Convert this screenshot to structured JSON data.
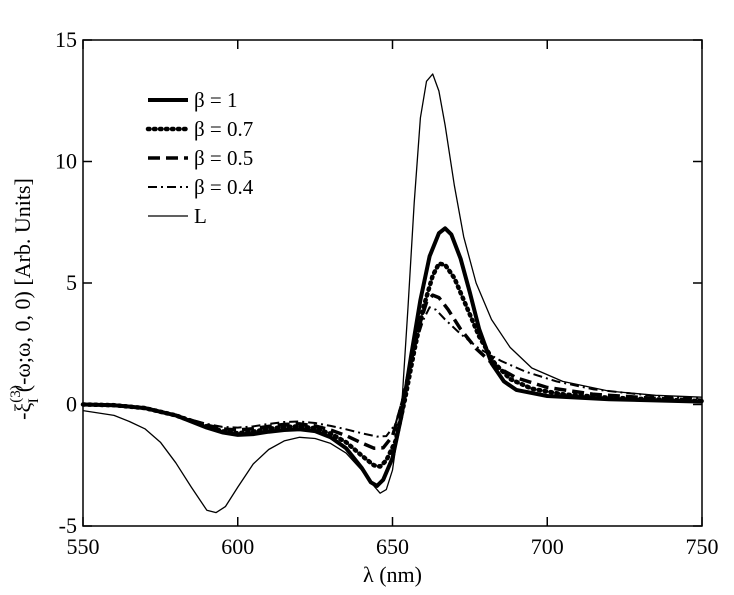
{
  "chart_data": {
    "type": "line",
    "xlabel": "λ (nm)",
    "ylabel": "-ξ_I^(3)(-ω;ω, 0, 0) [Arb. Units]",
    "xlim": [
      550,
      750
    ],
    "ylim": [
      -5,
      15
    ],
    "xticks": [
      550,
      600,
      650,
      700,
      750
    ],
    "yticks": [
      -5,
      0,
      5,
      10,
      15
    ],
    "grid": false,
    "legend_position": "top-left",
    "series": [
      {
        "name": "β = 1",
        "style": "solid-thick",
        "points": [
          [
            550,
            0
          ],
          [
            560,
            -0.03
          ],
          [
            570,
            -0.15
          ],
          [
            580,
            -0.45
          ],
          [
            590,
            -0.95
          ],
          [
            595,
            -1.15
          ],
          [
            600,
            -1.25
          ],
          [
            605,
            -1.22
          ],
          [
            610,
            -1.12
          ],
          [
            615,
            -1.05
          ],
          [
            620,
            -1.02
          ],
          [
            625,
            -1.1
          ],
          [
            630,
            -1.35
          ],
          [
            635,
            -1.8
          ],
          [
            640,
            -2.6
          ],
          [
            643,
            -3.2
          ],
          [
            645,
            -3.35
          ],
          [
            647,
            -3.1
          ],
          [
            650,
            -2.2
          ],
          [
            653,
            -0.4
          ],
          [
            656,
            2.0
          ],
          [
            659,
            4.3
          ],
          [
            662,
            6.1
          ],
          [
            665,
            7.05
          ],
          [
            667,
            7.25
          ],
          [
            669,
            7.0
          ],
          [
            672,
            6.0
          ],
          [
            675,
            4.6
          ],
          [
            678,
            3.1
          ],
          [
            682,
            1.7
          ],
          [
            686,
            0.95
          ],
          [
            690,
            0.6
          ],
          [
            700,
            0.35
          ],
          [
            720,
            0.22
          ],
          [
            750,
            0.12
          ]
        ]
      },
      {
        "name": "β = 0.7",
        "style": "dotted-thick",
        "points": [
          [
            550,
            0
          ],
          [
            560,
            -0.03
          ],
          [
            570,
            -0.15
          ],
          [
            580,
            -0.45
          ],
          [
            590,
            -0.9
          ],
          [
            595,
            -1.1
          ],
          [
            600,
            -1.18
          ],
          [
            605,
            -1.12
          ],
          [
            610,
            -1.0
          ],
          [
            615,
            -0.92
          ],
          [
            620,
            -0.9
          ],
          [
            625,
            -0.98
          ],
          [
            630,
            -1.2
          ],
          [
            635,
            -1.55
          ],
          [
            640,
            -2.1
          ],
          [
            644,
            -2.5
          ],
          [
            646,
            -2.55
          ],
          [
            648,
            -2.3
          ],
          [
            651,
            -1.5
          ],
          [
            654,
            0.2
          ],
          [
            657,
            2.2
          ],
          [
            660,
            4.0
          ],
          [
            663,
            5.3
          ],
          [
            665,
            5.8
          ],
          [
            667,
            5.75
          ],
          [
            670,
            5.2
          ],
          [
            674,
            4.0
          ],
          [
            678,
            2.8
          ],
          [
            683,
            1.7
          ],
          [
            688,
            1.05
          ],
          [
            695,
            0.65
          ],
          [
            705,
            0.42
          ],
          [
            720,
            0.28
          ],
          [
            750,
            0.14
          ]
        ]
      },
      {
        "name": "β = 0.5",
        "style": "dashed-thick",
        "points": [
          [
            550,
            0
          ],
          [
            560,
            -0.03
          ],
          [
            570,
            -0.15
          ],
          [
            580,
            -0.45
          ],
          [
            590,
            -0.85
          ],
          [
            595,
            -1.0
          ],
          [
            600,
            -1.05
          ],
          [
            605,
            -1.0
          ],
          [
            610,
            -0.9
          ],
          [
            615,
            -0.82
          ],
          [
            620,
            -0.8
          ],
          [
            625,
            -0.88
          ],
          [
            630,
            -1.05
          ],
          [
            635,
            -1.28
          ],
          [
            640,
            -1.58
          ],
          [
            644,
            -1.8
          ],
          [
            647,
            -1.78
          ],
          [
            650,
            -1.3
          ],
          [
            653,
            0.0
          ],
          [
            656,
            1.8
          ],
          [
            659,
            3.4
          ],
          [
            661,
            4.2
          ],
          [
            663,
            4.5
          ],
          [
            665,
            4.4
          ],
          [
            668,
            3.9
          ],
          [
            672,
            3.1
          ],
          [
            677,
            2.3
          ],
          [
            683,
            1.6
          ],
          [
            690,
            1.1
          ],
          [
            700,
            0.7
          ],
          [
            715,
            0.42
          ],
          [
            735,
            0.25
          ],
          [
            750,
            0.18
          ]
        ]
      },
      {
        "name": "β = 0.4",
        "style": "dashdot",
        "points": [
          [
            550,
            0
          ],
          [
            560,
            -0.03
          ],
          [
            570,
            -0.15
          ],
          [
            580,
            -0.45
          ],
          [
            590,
            -0.8
          ],
          [
            595,
            -0.92
          ],
          [
            600,
            -0.95
          ],
          [
            605,
            -0.9
          ],
          [
            610,
            -0.8
          ],
          [
            615,
            -0.72
          ],
          [
            620,
            -0.7
          ],
          [
            625,
            -0.76
          ],
          [
            630,
            -0.88
          ],
          [
            635,
            -1.02
          ],
          [
            640,
            -1.18
          ],
          [
            645,
            -1.32
          ],
          [
            648,
            -1.3
          ],
          [
            651,
            -0.8
          ],
          [
            654,
            0.6
          ],
          [
            657,
            2.3
          ],
          [
            660,
            3.5
          ],
          [
            662,
            4.0
          ],
          [
            664,
            3.9
          ],
          [
            667,
            3.5
          ],
          [
            672,
            2.9
          ],
          [
            678,
            2.3
          ],
          [
            685,
            1.8
          ],
          [
            693,
            1.35
          ],
          [
            703,
            0.95
          ],
          [
            715,
            0.62
          ],
          [
            735,
            0.35
          ],
          [
            750,
            0.25
          ]
        ]
      },
      {
        "name": "L",
        "style": "solid-thin",
        "points": [
          [
            550,
            -0.25
          ],
          [
            560,
            -0.45
          ],
          [
            565,
            -0.7
          ],
          [
            570,
            -1.0
          ],
          [
            575,
            -1.55
          ],
          [
            580,
            -2.4
          ],
          [
            585,
            -3.4
          ],
          [
            590,
            -4.35
          ],
          [
            593,
            -4.45
          ],
          [
            596,
            -4.2
          ],
          [
            600,
            -3.4
          ],
          [
            605,
            -2.45
          ],
          [
            610,
            -1.85
          ],
          [
            615,
            -1.5
          ],
          [
            620,
            -1.35
          ],
          [
            625,
            -1.4
          ],
          [
            630,
            -1.6
          ],
          [
            635,
            -2.0
          ],
          [
            640,
            -2.7
          ],
          [
            643,
            -3.2
          ],
          [
            646,
            -3.65
          ],
          [
            648,
            -3.5
          ],
          [
            650,
            -2.7
          ],
          [
            653,
            0.0
          ],
          [
            655,
            4.0
          ],
          [
            657,
            8.3
          ],
          [
            659,
            11.8
          ],
          [
            661,
            13.3
          ],
          [
            663,
            13.6
          ],
          [
            665,
            12.9
          ],
          [
            667,
            11.5
          ],
          [
            670,
            9.0
          ],
          [
            673,
            6.9
          ],
          [
            677,
            5.0
          ],
          [
            682,
            3.5
          ],
          [
            688,
            2.35
          ],
          [
            695,
            1.5
          ],
          [
            705,
            0.95
          ],
          [
            720,
            0.55
          ],
          [
            735,
            0.38
          ],
          [
            750,
            0.3
          ]
        ]
      }
    ]
  }
}
